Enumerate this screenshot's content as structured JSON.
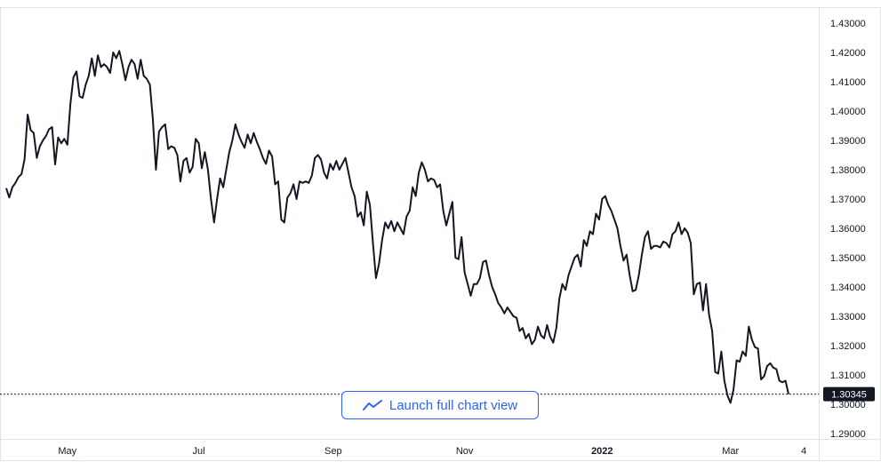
{
  "launch_button": {
    "label": "Launch full chart view",
    "icon": "trend-line-icon",
    "color": "#2962ff"
  },
  "chart_data": {
    "type": "line",
    "title": "",
    "xlabel": "",
    "ylabel": "",
    "ylim": [
      1.285,
      1.435
    ],
    "grid": false,
    "line_color": "#131722",
    "y_ticks": [
      "1.29000",
      "1.30000",
      "1.31000",
      "1.32000",
      "1.33000",
      "1.34000",
      "1.35000",
      "1.36000",
      "1.37000",
      "1.38000",
      "1.39000",
      "1.40000",
      "1.41000",
      "1.42000",
      "1.43000"
    ],
    "x_ticks": [
      {
        "label": "May",
        "index": 20,
        "bold": false
      },
      {
        "label": "Jul",
        "index": 63,
        "bold": false
      },
      {
        "label": "Sep",
        "index": 107,
        "bold": false
      },
      {
        "label": "Nov",
        "index": 150,
        "bold": false
      },
      {
        "label": "2022",
        "index": 195,
        "bold": true
      },
      {
        "label": "Mar",
        "index": 237,
        "bold": false
      },
      {
        "label": "4",
        "index": 261,
        "bold": false
      }
    ],
    "last_value": {
      "value": 1.30345,
      "label": "1.30345"
    },
    "series": [
      {
        "values": [
          1.3737,
          1.3705,
          1.374,
          1.3755,
          1.3775,
          1.3785,
          1.3835,
          1.3988,
          1.3935,
          1.3925,
          1.384,
          1.388,
          1.39,
          1.3915,
          1.3938,
          1.3945,
          1.3818,
          1.391,
          1.389,
          1.3905,
          1.3885,
          1.4025,
          1.4115,
          1.4135,
          1.405,
          1.4045,
          1.409,
          1.412,
          1.418,
          1.412,
          1.419,
          1.415,
          1.416,
          1.415,
          1.413,
          1.42,
          1.418,
          1.4205,
          1.416,
          1.4105,
          1.415,
          1.4175,
          1.416,
          1.411,
          1.4175,
          1.412,
          1.411,
          1.409,
          1.397,
          1.38,
          1.393,
          1.3945,
          1.3955,
          1.387,
          1.388,
          1.3875,
          1.385,
          1.376,
          1.383,
          1.384,
          1.379,
          1.381,
          1.3905,
          1.389,
          1.3805,
          1.386,
          1.38,
          1.37,
          1.362,
          1.37,
          1.377,
          1.374,
          1.38,
          1.386,
          1.39,
          1.3955,
          1.392,
          1.3895,
          1.3875,
          1.392,
          1.389,
          1.3925,
          1.3895,
          1.387,
          1.384,
          1.382,
          1.3865,
          1.3845,
          1.375,
          1.376,
          1.363,
          1.362,
          1.3705,
          1.372,
          1.375,
          1.37,
          1.376,
          1.3755,
          1.376,
          1.3755,
          1.378,
          1.384,
          1.385,
          1.3835,
          1.379,
          1.377,
          1.382,
          1.38,
          1.383,
          1.38,
          1.382,
          1.384,
          1.379,
          1.374,
          1.371,
          1.364,
          1.3655,
          1.361,
          1.3725,
          1.368,
          1.355,
          1.343,
          1.348,
          1.356,
          1.362,
          1.36,
          1.3625,
          1.359,
          1.362,
          1.36,
          1.358,
          1.364,
          1.366,
          1.374,
          1.371,
          1.379,
          1.3825,
          1.38,
          1.376,
          1.377,
          1.3765,
          1.374,
          1.375,
          1.366,
          1.361,
          1.365,
          1.369,
          1.35,
          1.3495,
          1.357,
          1.345,
          1.341,
          1.337,
          1.341,
          1.341,
          1.343,
          1.3485,
          1.349,
          1.344,
          1.34,
          1.3375,
          1.3345,
          1.333,
          1.331,
          1.333,
          1.3315,
          1.33,
          1.3295,
          1.325,
          1.326,
          1.3225,
          1.324,
          1.3205,
          1.322,
          1.3265,
          1.3235,
          1.3225,
          1.327,
          1.323,
          1.321,
          1.326,
          1.336,
          1.341,
          1.339,
          1.344,
          1.347,
          1.35,
          1.351,
          1.347,
          1.356,
          1.354,
          1.359,
          1.358,
          1.365,
          1.363,
          1.37,
          1.371,
          1.368,
          1.366,
          1.363,
          1.36,
          1.354,
          1.349,
          1.351,
          1.344,
          1.3385,
          1.339,
          1.344,
          1.351,
          1.357,
          1.359,
          1.353,
          1.354,
          1.354,
          1.3535,
          1.3555,
          1.355,
          1.3535,
          1.358,
          1.359,
          1.362,
          1.358,
          1.36,
          1.3585,
          1.355,
          1.3375,
          1.341,
          1.3415,
          1.332,
          1.341,
          1.3305,
          1.325,
          1.311,
          1.3105,
          1.318,
          1.308,
          1.303,
          1.3005,
          1.305,
          1.315,
          1.3145,
          1.318,
          1.3165,
          1.3265,
          1.322,
          1.3195,
          1.319,
          1.3085,
          1.3095,
          1.313,
          1.314,
          1.3125,
          1.312,
          1.308,
          1.3075,
          1.308,
          1.30345
        ]
      }
    ]
  }
}
